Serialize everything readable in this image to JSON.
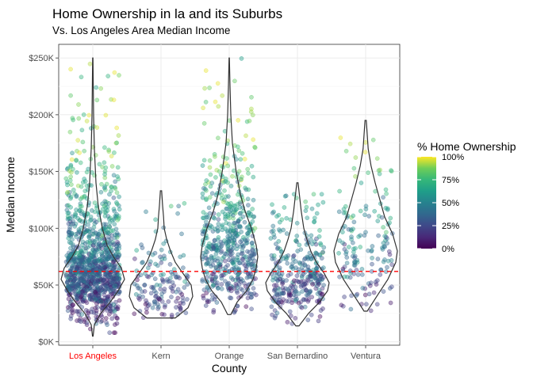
{
  "chart_data": {
    "type": "scatter",
    "title": "Home Ownership in la and its Suburbs",
    "subtitle": "Vs. Los Angeles Area Median Income",
    "xlabel": "County",
    "ylabel": "Median Income",
    "categories": [
      "Los Angeles",
      "Kern",
      "Orange",
      "San Bernardino",
      "Ventura"
    ],
    "highlight_category": "Los Angeles",
    "highlight_color": "#ff0000",
    "y_ticks": [
      {
        "value": 0,
        "label": "$0K"
      },
      {
        "value": 50000,
        "label": "$50K"
      },
      {
        "value": 100000,
        "label": "$100K"
      },
      {
        "value": 150000,
        "label": "$150K"
      },
      {
        "value": 200000,
        "label": "$200K"
      },
      {
        "value": 250000,
        "label": "$250K"
      }
    ],
    "ylim": [
      -3000,
      262000
    ],
    "reference_line": {
      "value": 62000,
      "color": "#ff0000",
      "style": "dashed"
    },
    "grid": true,
    "legend": {
      "title": "% Home Ownership",
      "position": "right",
      "colormap": "viridis",
      "ticks": [
        {
          "value": 0,
          "label": "0%"
        },
        {
          "value": 0.25,
          "label": "25%"
        },
        {
          "value": 0.5,
          "label": "50%"
        },
        {
          "value": 0.75,
          "label": "75%"
        },
        {
          "value": 1,
          "label": "100%"
        }
      ]
    },
    "violins": [
      {
        "category": "Los Angeles",
        "min": 5000,
        "max": 250000,
        "density": [
          [
            5000,
            0.01
          ],
          [
            15000,
            0.05
          ],
          [
            25000,
            0.25
          ],
          [
            35000,
            0.55
          ],
          [
            45000,
            0.8
          ],
          [
            55000,
            1.0
          ],
          [
            65000,
            0.9
          ],
          [
            75000,
            0.65
          ],
          [
            85000,
            0.45
          ],
          [
            100000,
            0.3
          ],
          [
            120000,
            0.17
          ],
          [
            140000,
            0.1
          ],
          [
            170000,
            0.05
          ],
          [
            200000,
            0.025
          ],
          [
            250000,
            0.005
          ]
        ]
      },
      {
        "category": "Kern",
        "min": 21000,
        "max": 133000,
        "density": [
          [
            21000,
            0.45
          ],
          [
            30000,
            0.85
          ],
          [
            40000,
            1.0
          ],
          [
            50000,
            0.95
          ],
          [
            60000,
            0.7
          ],
          [
            70000,
            0.45
          ],
          [
            80000,
            0.3
          ],
          [
            90000,
            0.18
          ],
          [
            100000,
            0.1
          ],
          [
            110000,
            0.08
          ],
          [
            120000,
            0.05
          ],
          [
            133000,
            0.02
          ]
        ]
      },
      {
        "category": "Orange",
        "min": 24000,
        "max": 250000,
        "density": [
          [
            24000,
            0.05
          ],
          [
            35000,
            0.25
          ],
          [
            45000,
            0.55
          ],
          [
            55000,
            0.75
          ],
          [
            65000,
            0.85
          ],
          [
            75000,
            0.9
          ],
          [
            85000,
            0.85
          ],
          [
            100000,
            0.7
          ],
          [
            115000,
            0.5
          ],
          [
            130000,
            0.35
          ],
          [
            150000,
            0.22
          ],
          [
            175000,
            0.1
          ],
          [
            200000,
            0.05
          ],
          [
            225000,
            0.025
          ],
          [
            250000,
            0.005
          ]
        ]
      },
      {
        "category": "San Bernardino",
        "min": 14000,
        "max": 140000,
        "density": [
          [
            14000,
            0.05
          ],
          [
            25000,
            0.35
          ],
          [
            35000,
            0.7
          ],
          [
            45000,
            0.95
          ],
          [
            52000,
            1.0
          ],
          [
            60000,
            0.85
          ],
          [
            70000,
            0.6
          ],
          [
            80000,
            0.42
          ],
          [
            90000,
            0.3
          ],
          [
            100000,
            0.2
          ],
          [
            115000,
            0.12
          ],
          [
            130000,
            0.06
          ],
          [
            140000,
            0.02
          ]
        ]
      },
      {
        "category": "Ventura",
        "min": 27000,
        "max": 195000,
        "density": [
          [
            27000,
            0.05
          ],
          [
            40000,
            0.35
          ],
          [
            55000,
            0.7
          ],
          [
            70000,
            0.95
          ],
          [
            80000,
            1.0
          ],
          [
            95000,
            0.85
          ],
          [
            110000,
            0.6
          ],
          [
            125000,
            0.45
          ],
          [
            140000,
            0.3
          ],
          [
            155000,
            0.17
          ],
          [
            170000,
            0.08
          ],
          [
            195000,
            0.02
          ]
        ]
      }
    ],
    "points": [
      {
        "category": "Los Angeles",
        "count": 1150,
        "min": 8000,
        "max": 250000
      },
      {
        "category": "Kern",
        "count": 150,
        "min": 21000,
        "max": 122000
      },
      {
        "category": "Orange",
        "count": 560,
        "min": 25000,
        "max": 250000
      },
      {
        "category": "San Bernardino",
        "count": 330,
        "min": 16000,
        "max": 130000
      },
      {
        "category": "Ventura",
        "count": 160,
        "min": 27000,
        "max": 195000
      }
    ]
  }
}
